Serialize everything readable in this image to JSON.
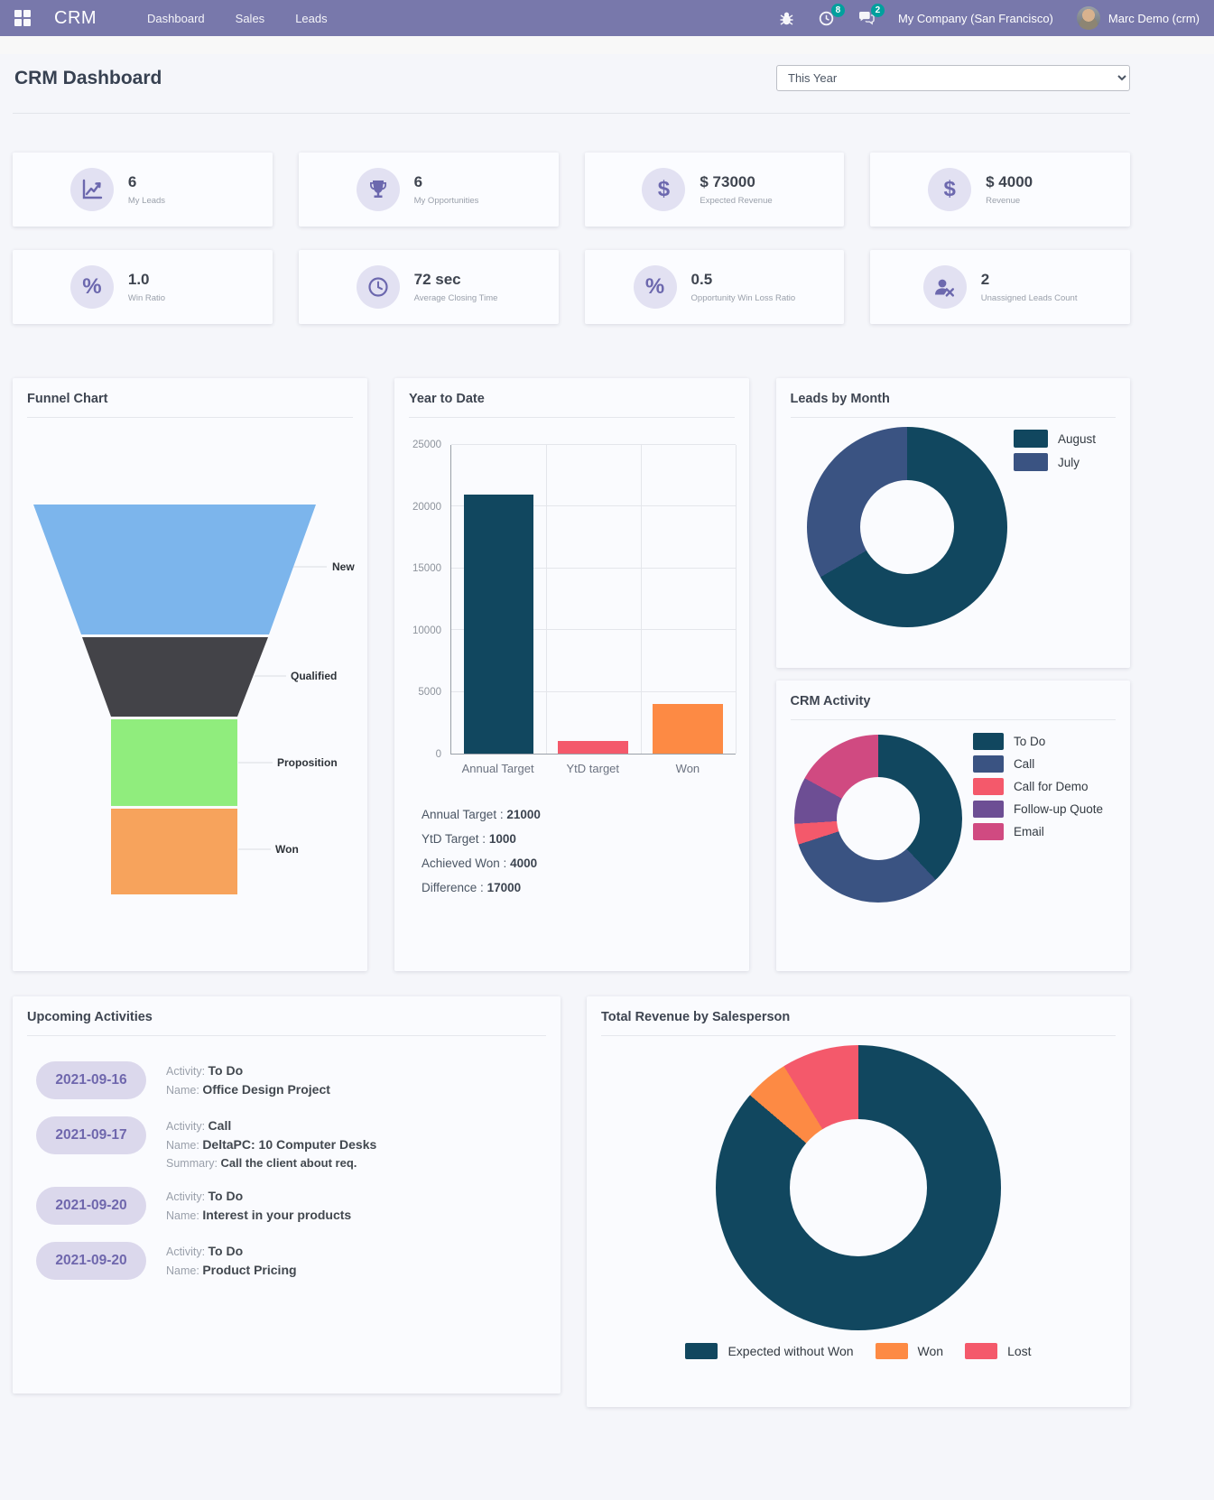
{
  "navbar": {
    "brand": "CRM",
    "menu": [
      {
        "label": "Dashboard"
      },
      {
        "label": "Sales"
      },
      {
        "label": "Leads"
      }
    ],
    "icons": [
      "bug-icon",
      "activity-clock-icon",
      "messages-icon"
    ],
    "activity_badge": "8",
    "message_badge": "2",
    "company": "My Company (San Francisco)",
    "user": "Marc Demo (crm)"
  },
  "header": {
    "title": "CRM Dashboard",
    "period_selected": "This Year"
  },
  "kpis": [
    {
      "icon": "line-chart-icon",
      "value": "6",
      "label": "My Leads"
    },
    {
      "icon": "trophy-icon",
      "value": "6",
      "label": "My Opportunities"
    },
    {
      "icon": "dollar-icon",
      "value": "$ 73000",
      "label": "Expected Revenue"
    },
    {
      "icon": "dollar-icon",
      "value": "$ 4000",
      "label": "Revenue"
    },
    {
      "icon": "percent-icon",
      "value": "1.0",
      "label": "Win Ratio"
    },
    {
      "icon": "clock-icon",
      "value": "72 sec",
      "label": "Average Closing Time"
    },
    {
      "icon": "percent-icon",
      "value": "0.5",
      "label": "Opportunity Win Loss Ratio"
    },
    {
      "icon": "user-x-icon",
      "value": "2",
      "label": "Unassigned Leads Count"
    }
  ],
  "chart_data": [
    {
      "id": "funnel",
      "type": "funnel",
      "title": "Funnel Chart",
      "stages": [
        "New",
        "Qualified",
        "Proposition",
        "Won"
      ],
      "colors": [
        "#7cb5ec",
        "#434348",
        "#90ed7d",
        "#f7a35c"
      ]
    },
    {
      "id": "year_to_date",
      "type": "bar",
      "title": "Year to Date",
      "categories": [
        "Annual Target",
        "YtD target",
        "Won"
      ],
      "values": [
        21000,
        1000,
        4000
      ],
      "colors": [
        "#11475f",
        "#f4596b",
        "#fd8a44"
      ],
      "ylim": [
        0,
        25000
      ],
      "yticks": [
        0,
        5000,
        10000,
        15000,
        20000,
        25000
      ],
      "grid": true,
      "legend": "none"
    },
    {
      "id": "leads_by_month",
      "type": "donut",
      "title": "Leads by Month",
      "labels": [
        "August",
        "July"
      ],
      "values": [
        4,
        2
      ],
      "colors": [
        "#11475f",
        "#3a5382"
      ],
      "legend_position": "right"
    },
    {
      "id": "crm_activity",
      "type": "donut",
      "title": "CRM Activity",
      "labels": [
        "To Do",
        "Call",
        "Call for Demo",
        "Follow-up Quote",
        "Email"
      ],
      "values": [
        38,
        32,
        4,
        9,
        17
      ],
      "colors": [
        "#11475f",
        "#3a5382",
        "#f4596b",
        "#6d4e94",
        "#d04a81"
      ],
      "legend_position": "right"
    },
    {
      "id": "total_revenue_by_salesperson",
      "type": "donut",
      "title": "Total Revenue by Salesperson",
      "labels": [
        "Expected without Won",
        "Won",
        "Lost"
      ],
      "values": [
        69000,
        4000,
        7000
      ],
      "colors": [
        "#11475f",
        "#fd8a44",
        "#f4596b"
      ],
      "legend_position": "bottom"
    }
  ],
  "ytd_summary": [
    {
      "label": "Annual Target :",
      "value": "21000"
    },
    {
      "label": "YtD Target :",
      "value": "1000"
    },
    {
      "label": "Achieved Won :",
      "value": "4000"
    },
    {
      "label": "Difference :",
      "value": "17000"
    }
  ],
  "activities": {
    "title": "Upcoming Activities",
    "field_labels": {
      "activity": "Activity:",
      "name": "Name:",
      "summary": "Summary:"
    },
    "items": [
      {
        "date": "2021-09-16",
        "activity": "To Do",
        "name": "Office Design Project"
      },
      {
        "date": "2021-09-17",
        "activity": "Call",
        "name": "DeltaPC: 10 Computer Desks",
        "summary": "Call the client about req."
      },
      {
        "date": "2021-09-20",
        "activity": "To Do",
        "name": "Interest in your products"
      },
      {
        "date": "2021-09-20",
        "activity": "To Do",
        "name": "Product Pricing"
      }
    ]
  },
  "colors": {
    "navbar": "#7878ab",
    "badge": "#00a09d",
    "accent_purple": "#6c68ae",
    "dark_teal": "#11475f",
    "navy": "#3a5382",
    "pink_red": "#f4596b",
    "orange": "#fd8a44",
    "purple": "#6d4e94",
    "magenta": "#d04a81"
  }
}
